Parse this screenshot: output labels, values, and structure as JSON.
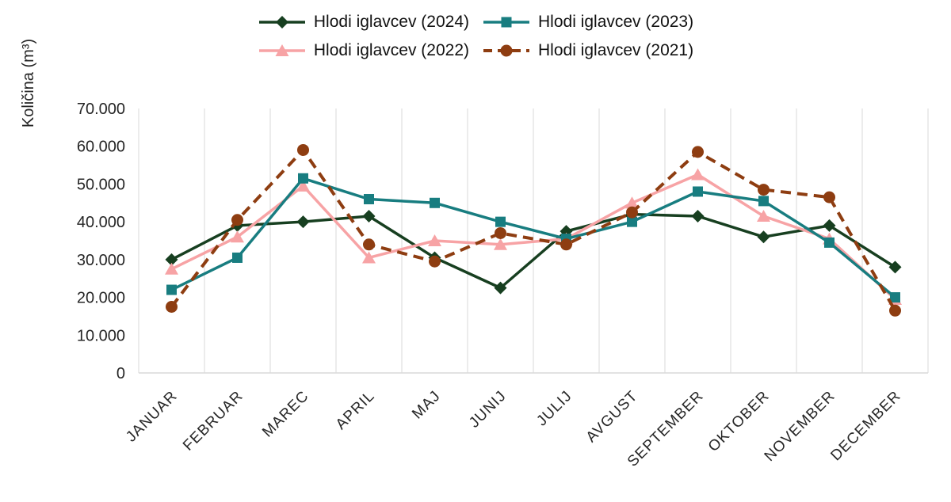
{
  "chart_data": {
    "type": "line",
    "title": "",
    "xlabel": "",
    "ylabel": "Količina (m³)",
    "ylim": [
      0,
      70000
    ],
    "y_ticks": [
      0,
      10000,
      20000,
      30000,
      40000,
      50000,
      60000,
      70000
    ],
    "y_tick_labels": [
      "0",
      "10.000",
      "20.000",
      "30.000",
      "40.000",
      "50.000",
      "60.000",
      "70.000"
    ],
    "categories": [
      "JANUAR",
      "FEBRUAR",
      "MAREC",
      "APRIL",
      "MAJ",
      "JUNIJ",
      "JULIJ",
      "AVGUST",
      "SEPTEMBER",
      "OKTOBER",
      "NOVEMBER",
      "DECEMBER"
    ],
    "grid": "vertical-only",
    "legend_position": "top",
    "axis_color": "#d9d9d9",
    "text_color": "#262626",
    "series": [
      {
        "name": "Hlodi iglavcev (2024)",
        "color": "#173f20",
        "marker": "diamond",
        "line": "solid",
        "values": [
          30000,
          39000,
          40000,
          41500,
          30500,
          22500,
          37500,
          42000,
          41500,
          36000,
          39000,
          28000
        ]
      },
      {
        "name": "Hlodi iglavcev (2023)",
        "color": "#187d80",
        "marker": "square",
        "line": "solid",
        "values": [
          22000,
          30500,
          51500,
          46000,
          45000,
          40000,
          35500,
          40000,
          48000,
          45500,
          34500,
          20000
        ]
      },
      {
        "name": "Hlodi iglavcev (2022)",
        "color": "#f7a3a5",
        "marker": "triangle",
        "line": "solid",
        "values": [
          27500,
          36000,
          49500,
          30500,
          35000,
          34000,
          35500,
          45000,
          52500,
          41500,
          35500,
          19500
        ]
      },
      {
        "name": "Hlodi iglavcev (2021)",
        "color": "#8e3d11",
        "marker": "circle",
        "line": "dashed",
        "values": [
          17500,
          40500,
          59000,
          34000,
          29500,
          37000,
          34000,
          42500,
          58500,
          48500,
          46500,
          16500
        ]
      }
    ]
  }
}
